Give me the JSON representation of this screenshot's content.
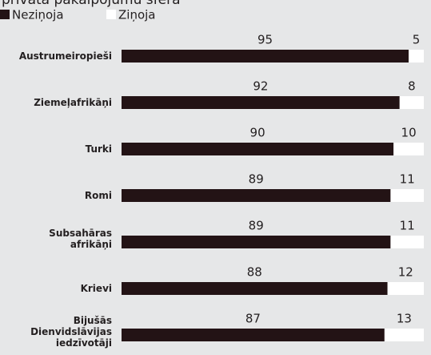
{
  "chart_data": {
    "type": "bar",
    "stacked": true,
    "orientation": "horizontal",
    "title": "privātā pakalpojumu sfērā",
    "categories": [
      "Austrumeiropieši",
      "Ziemeļafrikāņi",
      "Turki",
      "Romi",
      "Subsahāras\nafrikāņi",
      "Krievi",
      "Bijušās\nDienvidslāvijas\niedzīvotāji"
    ],
    "series": [
      {
        "name": "Neziņoja",
        "color": "#231315",
        "values": [
          95,
          92,
          90,
          89,
          89,
          88,
          87
        ]
      },
      {
        "name": "Ziņoja",
        "color": "#ffffff",
        "values": [
          5,
          8,
          10,
          11,
          11,
          12,
          13
        ]
      }
    ],
    "xlim": [
      0,
      100
    ]
  }
}
